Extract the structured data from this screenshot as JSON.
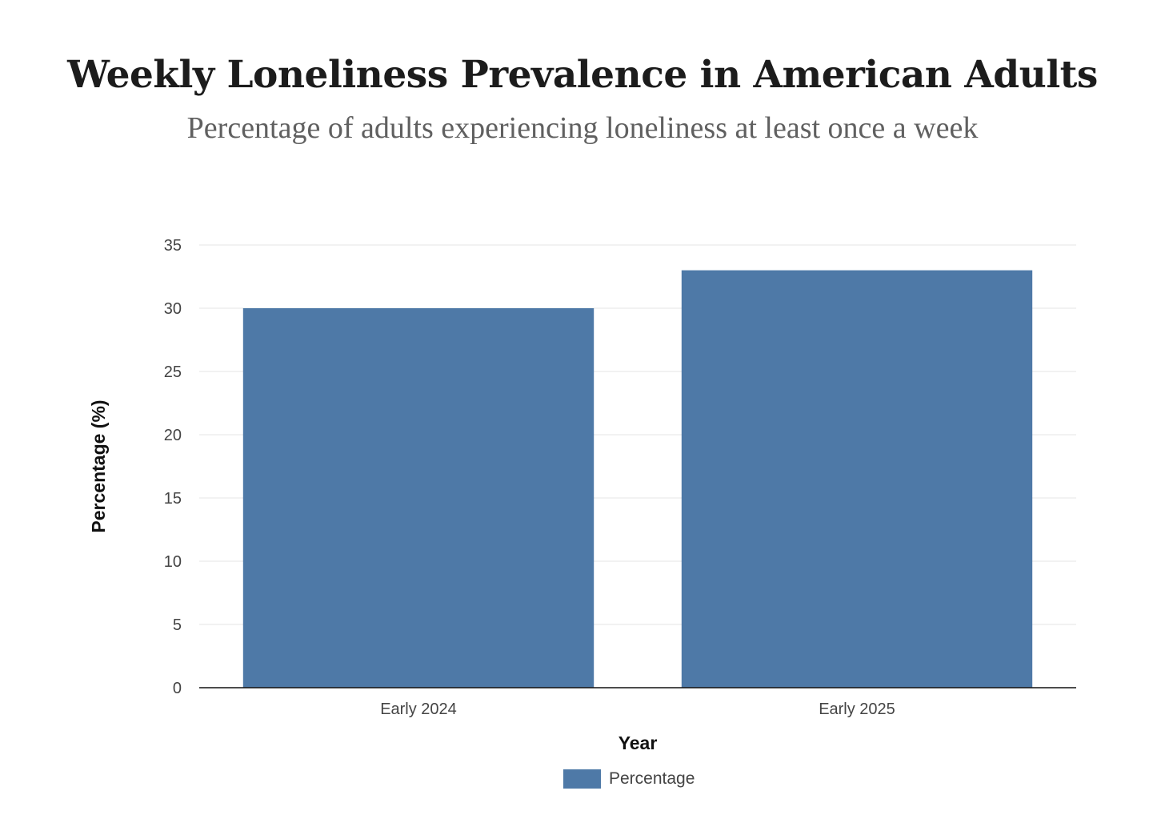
{
  "chart_data": {
    "type": "bar",
    "title": "Weekly Loneliness Prevalence in American Adults",
    "subtitle": "Percentage of adults experiencing loneliness at least once a week",
    "xlabel": "Year",
    "ylabel": "Percentage (%)",
    "categories": [
      "Early 2024",
      "Early 2025"
    ],
    "series": [
      {
        "name": "Percentage",
        "values": [
          30,
          33
        ],
        "color": "#4e79a7"
      }
    ],
    "ylim": [
      0,
      35
    ],
    "yticks": [
      0,
      5,
      10,
      15,
      20,
      25,
      30,
      35
    ],
    "grid": true,
    "legend_position": "bottom-center"
  }
}
